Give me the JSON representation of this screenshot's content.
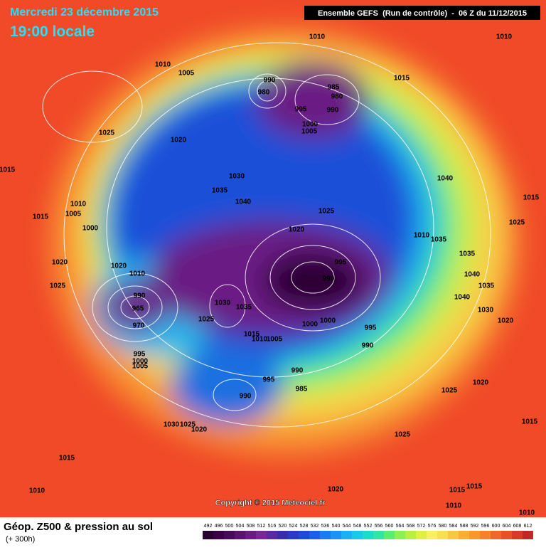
{
  "header": {
    "date": "Mercredi 23 décembre 2015",
    "time": "19:00 locale",
    "run": "Ensemble GEFS  (Run de contrôle)  -  06 Z du 11/12/2015"
  },
  "copyright": "Copyright © 2015 Meteociel.fr",
  "footer": {
    "title": "Géop. Z500 & pression au sol",
    "lead": "(+ 300h)"
  },
  "pressure_labels": [
    1010,
    1010,
    1010,
    1005,
    1015,
    990,
    985,
    980,
    980,
    995,
    990,
    1000,
    1005,
    1025,
    1020,
    1015,
    1040,
    1030,
    1035,
    1040,
    1010,
    1005,
    1015,
    1025,
    1015,
    1025,
    1000,
    1020,
    1010,
    1035,
    1035,
    1020,
    1020,
    1010,
    995,
    1040,
    990,
    1025,
    1035,
    990,
    1030,
    1035,
    1040,
    1030,
    965,
    1025,
    1000,
    1000,
    970,
    1020,
    995,
    1015,
    1010,
    1005,
    990,
    995,
    1000,
    1005,
    990,
    995,
    985,
    1020,
    1025,
    990,
    1030,
    1025,
    1020,
    1015,
    1025,
    1015,
    1010,
    1020,
    1015,
    1015,
    1010,
    1010
  ],
  "scale": {
    "labels": [
      492,
      496,
      500,
      504,
      508,
      512,
      516,
      520,
      524,
      528,
      532,
      536,
      540,
      544,
      548,
      552,
      556,
      560,
      564,
      568,
      572,
      576,
      580,
      584,
      588,
      592,
      596,
      600,
      604,
      608,
      612
    ],
    "colors": [
      "#2a0030",
      "#3a0045",
      "#4a0a5a",
      "#5a1470",
      "#6a1e84",
      "#7a2896",
      "#5a2aa0",
      "#3a2eb0",
      "#2a3ac4",
      "#1e4ad8",
      "#1a60e8",
      "#1a7af0",
      "#1a94f4",
      "#1ab0f4",
      "#1ac8e8",
      "#1adcc8",
      "#30e6a0",
      "#5aee70",
      "#8cf050",
      "#b8f040",
      "#e0f040",
      "#f8f060",
      "#f8e050",
      "#f8c840",
      "#f8b030",
      "#f89828",
      "#f88028",
      "#f06828",
      "#e85028",
      "#d83a28",
      "#c02828"
    ]
  }
}
